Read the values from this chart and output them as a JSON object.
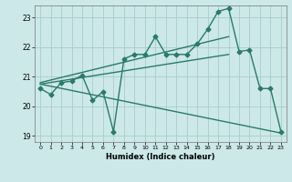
{
  "xlabel": "Humidex (Indice chaleur)",
  "color": "#2a7a6a",
  "bg_color": "#cce8e8",
  "grid_color": "#aacccc",
  "xlim": [
    -0.5,
    23.5
  ],
  "ylim": [
    18.8,
    23.4
  ],
  "xticks": [
    0,
    1,
    2,
    3,
    4,
    5,
    6,
    7,
    8,
    9,
    10,
    11,
    12,
    13,
    14,
    15,
    16,
    17,
    18,
    19,
    20,
    21,
    22,
    23
  ],
  "yticks": [
    19,
    20,
    21,
    22,
    23
  ],
  "series1_x": [
    0,
    1,
    2,
    3,
    4,
    5,
    6,
    7,
    8,
    9,
    10,
    11,
    12,
    13,
    14,
    15,
    16,
    17,
    18,
    19,
    20,
    21,
    22,
    23
  ],
  "series1_y": [
    20.6,
    20.4,
    20.8,
    20.85,
    21.05,
    20.2,
    20.5,
    19.15,
    21.6,
    21.75,
    21.75,
    22.35,
    21.75,
    21.75,
    21.75,
    22.1,
    22.6,
    23.2,
    23.3,
    21.85,
    21.9,
    20.6,
    20.6,
    19.15
  ],
  "series2_x": [
    0,
    23
  ],
  "series2_y": [
    20.75,
    19.1
  ],
  "series3_x": [
    0,
    18
  ],
  "series3_y": [
    20.8,
    22.35
  ],
  "series4_x": [
    0,
    18
  ],
  "series4_y": [
    20.75,
    21.75
  ],
  "linewidth": 1.0,
  "markersize": 2.5
}
